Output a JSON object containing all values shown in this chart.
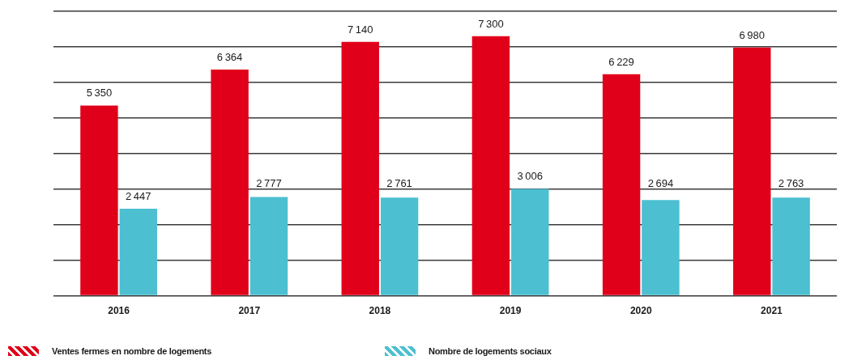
{
  "chart_data": {
    "type": "bar",
    "categories": [
      "2016",
      "2017",
      "2018",
      "2019",
      "2020",
      "2021"
    ],
    "series": [
      {
        "name": "Ventes fermes en nombre de logements",
        "color": "#e1001a",
        "values": [
          5350,
          6364,
          7140,
          7300,
          6229,
          6980
        ]
      },
      {
        "name": "Nombre de logements sociaux",
        "color": "#4cbfd1",
        "values": [
          2447,
          2777,
          2761,
          3006,
          2694,
          2763
        ]
      }
    ],
    "ylim": [
      0,
      8000
    ],
    "yticks": [
      {
        "value": 0,
        "label": null
      },
      {
        "value": 1000,
        "label": null
      },
      {
        "value": 2000,
        "label": null
      },
      {
        "value": 3000,
        "label": null
      },
      {
        "value": 4000,
        "label": null
      },
      {
        "value": 5000,
        "label": null
      },
      {
        "value": 6000,
        "label": null
      },
      {
        "value": 7000,
        "label": null
      },
      {
        "value": 8000,
        "label": null
      }
    ],
    "grid": "y",
    "legend": "bottom",
    "tick_labels": "x",
    "data_labels": true
  }
}
